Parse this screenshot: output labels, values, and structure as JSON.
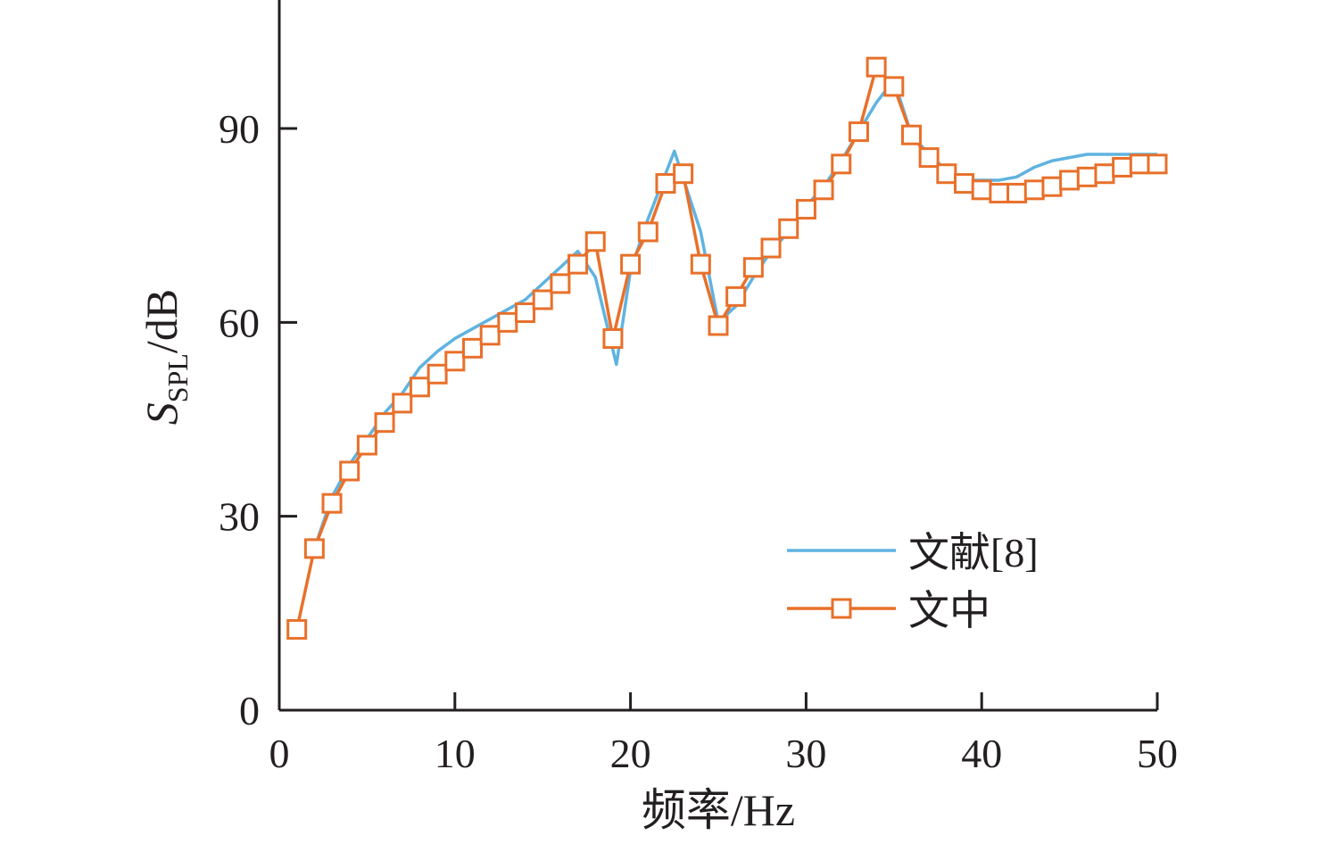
{
  "chart_data": {
    "type": "line",
    "xlabel": "频率/Hz",
    "ylabel": {
      "main": "S",
      "sub": "SPL",
      "unit": "/dB"
    },
    "xlim": [
      0,
      50
    ],
    "ylim": [
      0,
      105
    ],
    "xticks": [
      0,
      10,
      20,
      30,
      40,
      50
    ],
    "yticks": [
      0,
      30,
      60,
      90
    ],
    "grid": false,
    "legend_position": "bottom-right",
    "series": [
      {
        "name": "文献[8]",
        "color": "#5fb3e0",
        "marker": "none",
        "x": [
          2,
          3,
          4,
          5,
          6,
          7,
          8,
          9,
          10,
          11,
          12,
          13,
          14,
          15,
          16,
          17,
          18,
          19.2,
          20,
          21,
          22.5,
          24,
          25,
          26,
          27,
          28,
          29,
          30,
          31,
          32,
          33,
          34,
          35,
          36,
          37,
          38,
          39,
          40,
          41,
          42,
          43,
          44,
          45,
          46,
          47,
          48,
          49,
          50
        ],
        "y": [
          25,
          33,
          38,
          42,
          46,
          49,
          53,
          55.5,
          57.5,
          59,
          60.5,
          62,
          63.5,
          66,
          68.5,
          71,
          67,
          53.5,
          68,
          76,
          86.5,
          74,
          60,
          62.5,
          67,
          71,
          74,
          78,
          81,
          85,
          89.5,
          94,
          97.5,
          89,
          86,
          83.5,
          82,
          82,
          82,
          82.5,
          84,
          85,
          85.5,
          86,
          86,
          86,
          86,
          86
        ]
      },
      {
        "name": "文中",
        "color": "#e8702a",
        "marker": "square",
        "x": [
          1,
          2,
          3,
          4,
          5,
          6,
          7,
          8,
          9,
          10,
          11,
          12,
          13,
          14,
          15,
          16,
          17,
          18,
          19,
          20,
          21,
          22,
          23,
          24,
          25,
          26,
          27,
          28,
          29,
          30,
          31,
          32,
          33,
          34,
          35,
          36,
          37,
          38,
          39,
          40,
          41,
          42,
          43,
          44,
          45,
          46,
          47,
          48,
          49,
          50
        ],
        "y": [
          12.5,
          25,
          32,
          37,
          41,
          44.5,
          47.5,
          50,
          52,
          54,
          56,
          58,
          60,
          61.5,
          63.5,
          66,
          69,
          72.5,
          57.5,
          69,
          74,
          81.5,
          83,
          69,
          59.5,
          64,
          68.5,
          71.5,
          74.5,
          77.5,
          80.5,
          84.5,
          89.5,
          99.5,
          96.5,
          89,
          85.5,
          83,
          81.5,
          80.5,
          80,
          80,
          80.5,
          81,
          82,
          82.5,
          83,
          84,
          84.5,
          84.5
        ]
      }
    ]
  }
}
